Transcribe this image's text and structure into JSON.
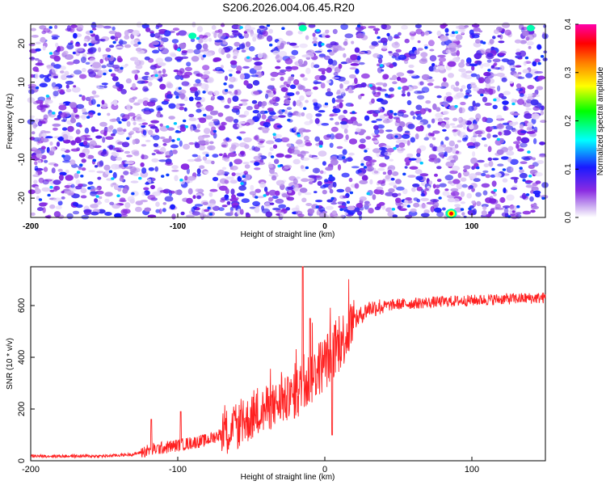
{
  "title": "S206.2026.004.06.45.R20",
  "chart_data": [
    {
      "type": "heatmap",
      "xlabel": "Height of straight line (km)",
      "ylabel": "Frequency (Hz)",
      "xlim": [
        -200,
        150
      ],
      "ylim": [
        -25,
        25
      ],
      "x_ticks": [
        "-200",
        "-100",
        "0",
        "100"
      ],
      "y_ticks": [
        "-20",
        "-10",
        "0",
        "10",
        "20"
      ],
      "colorbar": {
        "label": "Normalized spectral amplitude",
        "range": [
          0,
          0.4
        ],
        "ticks": [
          "0.0",
          "0.1",
          "0.2",
          "0.3",
          "0.4"
        ],
        "colormap": [
          "#ffffff",
          "#8a2be2",
          "#1a1aff",
          "#00ffff",
          "#00ff00",
          "#ffff00",
          "#ff8000",
          "#ff0000",
          "#ff00ff"
        ]
      },
      "description_values": {
        "background_level": 0.02,
        "typical_blob_level": 0.05,
        "bright_spots": [
          {
            "x": 86,
            "y": -24,
            "value": 0.4
          },
          {
            "x": -90,
            "y": 22,
            "value": 0.12
          },
          {
            "x": -15,
            "y": 24,
            "value": 0.12
          },
          {
            "x": 140,
            "y": 24,
            "value": 0.12
          }
        ],
        "light_vertical_stripes_x": [
          -130,
          -80,
          -15,
          90
        ]
      }
    },
    {
      "type": "line",
      "xlabel": "Height of straight line (km)",
      "ylabel": "SNR (10 * v/v)",
      "xlim": [
        -200,
        150
      ],
      "ylim": [
        0,
        750
      ],
      "x_ticks": [
        "-200",
        "-100",
        "0",
        "100"
      ],
      "y_ticks": [
        "0",
        "200",
        "400",
        "600"
      ],
      "color": "#ff2020",
      "trend": {
        "x": [
          -200,
          -150,
          -130,
          -120,
          -100,
          -80,
          -60,
          -40,
          -20,
          -10,
          0,
          10,
          20,
          30,
          50,
          80,
          100,
          120,
          150
        ],
        "y": [
          18,
          18,
          25,
          40,
          60,
          80,
          130,
          200,
          250,
          320,
          380,
          450,
          540,
          590,
          605,
          615,
          620,
          625,
          630
        ]
      },
      "peaks": [
        {
          "x": -118,
          "y": 160
        },
        {
          "x": -98,
          "y": 190
        },
        {
          "x": -15,
          "y": 750
        },
        {
          "x": -10,
          "y": 550
        },
        {
          "x": 5,
          "y": 100
        }
      ]
    }
  ]
}
